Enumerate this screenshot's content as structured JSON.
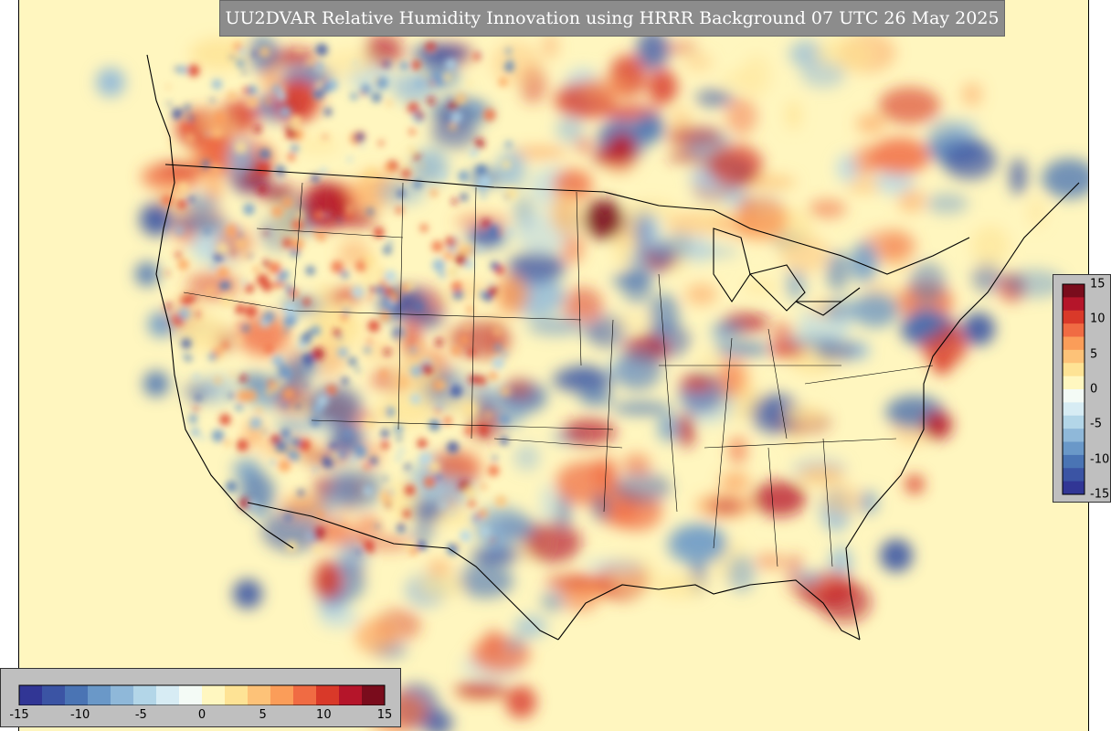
{
  "title": "UU2DVAR Relative Humidity Innovation using HRRR Background 07 UTC 26 May 2025",
  "colorbar": {
    "min": -15,
    "max": 15,
    "horizontal_ticks": [
      "-15",
      "-10",
      "-5",
      "0",
      "5",
      "10",
      "15"
    ],
    "vertical_ticks": [
      "15",
      "10",
      "5",
      "0",
      "-5",
      "-10",
      "-15"
    ],
    "colors": [
      "#313695",
      "#3b54a4",
      "#4a74b4",
      "#6a98c8",
      "#8fb8d9",
      "#b3d6e8",
      "#d7ecf4",
      "#f4fbf6",
      "#fff7c0",
      "#fee395",
      "#fdc278",
      "#fb9d59",
      "#f06b43",
      "#d93929",
      "#b5152a",
      "#7a0c1c"
    ]
  },
  "background_color": "#fff6bf"
}
